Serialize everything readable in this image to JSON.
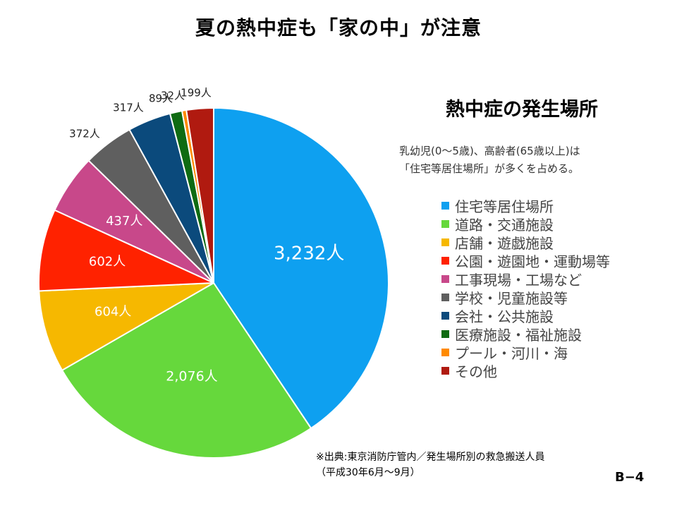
{
  "page": {
    "title": "夏の熱中症も「家の中」が注意",
    "description_lines": [
      "乳幼児(0～5歳)、高齢者(65歳以上)は",
      "「住宅等居住場所」が多くを占める。"
    ],
    "source_lines": [
      "※出典:東京消防庁管内／発生場所別の救急搬送人員",
      "（平成30年6月～9月）"
    ],
    "page_number": "B−4"
  },
  "chart_data": {
    "type": "pie",
    "title": "熱中症の発生場所",
    "unit": "人",
    "start_angle_deg": 0,
    "direction": "clockwise",
    "slices": [
      {
        "name": "住宅等居住場所",
        "value": 3232,
        "label": "3,232人",
        "color": "#0EA0F0"
      },
      {
        "name": "道路・交通施設",
        "value": 2076,
        "label": "2,076人",
        "color": "#66D83C"
      },
      {
        "name": "店舗・遊戯施設",
        "value": 604,
        "label": "604人",
        "color": "#F6B800"
      },
      {
        "name": "公園・遊園地・運動場等",
        "value": 602,
        "label": "602人",
        "color": "#FF2200"
      },
      {
        "name": "工事現場・工場など",
        "value": 437,
        "label": "437人",
        "color": "#C8488A"
      },
      {
        "name": "学校・児童施設等",
        "value": 372,
        "label": "372人",
        "color": "#5F5F5F"
      },
      {
        "name": "会社・公共施設",
        "value": 317,
        "label": "317人",
        "color": "#0B4A7C"
      },
      {
        "name": "医療施設・福祉施設",
        "value": 89,
        "label": "89人",
        "color": "#0F6B12"
      },
      {
        "name": "プール・河川・海",
        "value": 32,
        "label": "32人",
        "color": "#FF8A00"
      },
      {
        "name": "その他",
        "value": 199,
        "label": "199人",
        "color": "#B01A10"
      }
    ]
  }
}
